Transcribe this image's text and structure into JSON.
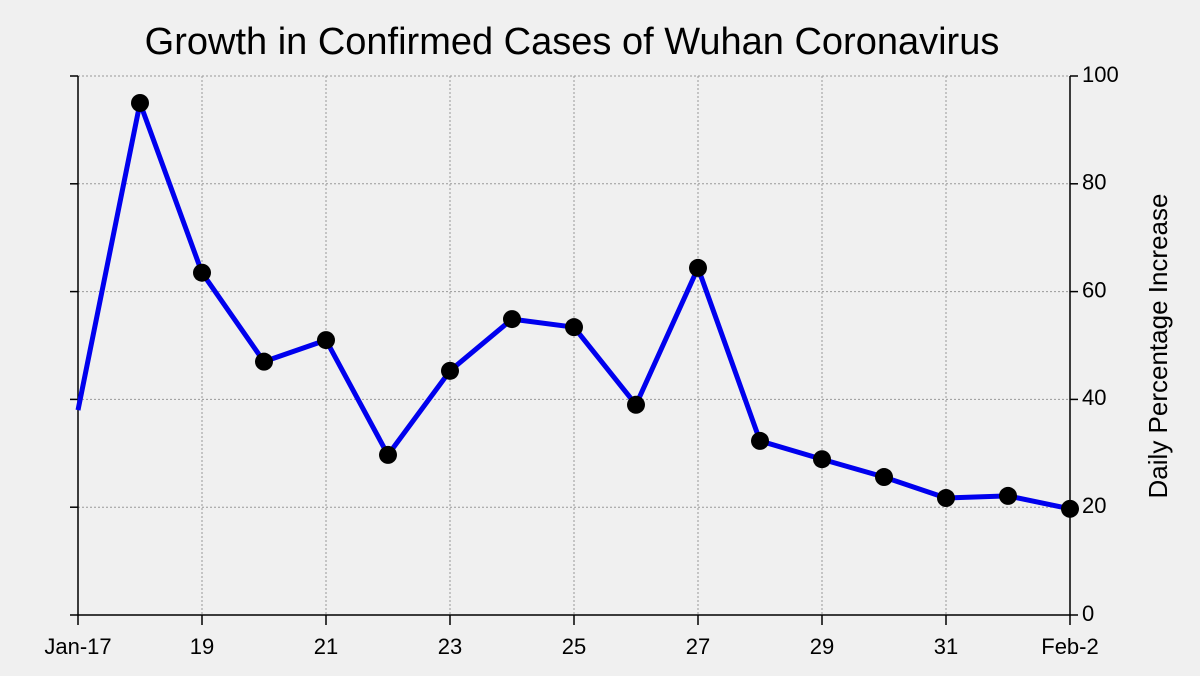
{
  "chart_data": {
    "type": "line",
    "title": "Growth in Confirmed Cases of Wuhan Coronavirus",
    "y_label": "Daily Percentage Increase",
    "categories": [
      "Jan-17",
      null,
      "19",
      null,
      "21",
      null,
      "23",
      null,
      "25",
      null,
      "27",
      null,
      "29",
      null,
      "31",
      null,
      "Feb-2"
    ],
    "series": [
      {
        "name": "Daily Percentage Increase",
        "color": "#0000ee",
        "values": [
          38.0,
          95.0,
          63.5,
          47.0,
          51.0,
          29.7,
          45.3,
          54.9,
          53.4,
          39.0,
          64.4,
          32.3,
          28.9,
          25.6,
          21.7,
          22.1,
          19.7
        ]
      }
    ],
    "ylim": [
      0,
      100
    ],
    "yticks": [
      0,
      20,
      40,
      60,
      80,
      100
    ],
    "grid": true,
    "y_axis_side": "right"
  }
}
